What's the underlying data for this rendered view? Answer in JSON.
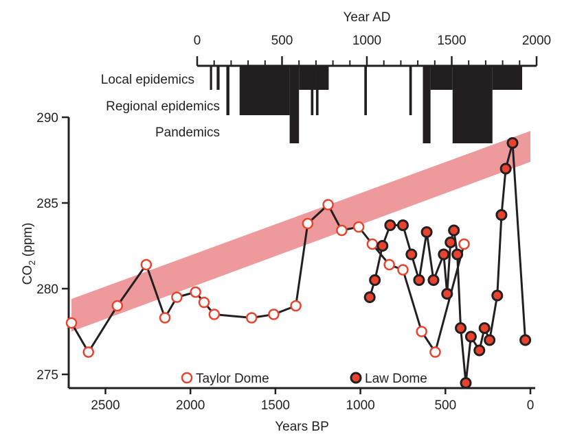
{
  "chart_data": {
    "type": "scatter",
    "ylabel_main": "CO",
    "ylabel_sub": "2",
    "ylabel_unit": " (ppm)",
    "xlabel_bottom": "Years BP",
    "xlabel_top": "Year AD",
    "xlim_bp": [
      2700,
      0
    ],
    "ylim": [
      274.2,
      290
    ],
    "xlim_ad": [
      0,
      2000
    ],
    "y_ticks": [
      275,
      280,
      285,
      290
    ],
    "y_tick_labels": [
      "275",
      "280",
      "285",
      "290"
    ],
    "x_ticks_bp": [
      2500,
      2000,
      1500,
      1000,
      500,
      0
    ],
    "x_tick_labels_bp": [
      "2500",
      "2000",
      "1500",
      "1000",
      "500",
      "0"
    ],
    "x_ticks_ad": [
      0,
      500,
      1000,
      1500,
      2000
    ],
    "x_tick_labels_ad": [
      "0",
      "500",
      "1000",
      "1500",
      "2000"
    ],
    "x_minor_ticks_ad": [
      100,
      200,
      300,
      400,
      600,
      700,
      800,
      900,
      1100,
      1200,
      1300,
      1400,
      1600,
      1700,
      1800,
      1900
    ],
    "trend_band": {
      "color": "#ee9a9c",
      "start": {
        "bp": 2700,
        "low": 277.5,
        "high": 279.4
      },
      "end": {
        "bp": 0,
        "low": 287.4,
        "high": 289.2
      }
    },
    "series": [
      {
        "name": "Taylor Dome",
        "marker": "open",
        "edge_color": "#e8432f",
        "fill_color": "#ffffff",
        "line_color": "#231f20",
        "x": [
          2700,
          2600,
          2430,
          2260,
          2150,
          2080,
          1970,
          1920,
          1860,
          1640,
          1510,
          1380,
          1310,
          1190,
          1110,
          1010,
          930,
          830,
          750,
          640,
          560,
          390
        ],
        "y": [
          278.0,
          276.3,
          279.0,
          281.4,
          278.3,
          279.5,
          279.8,
          279.2,
          278.5,
          278.3,
          278.5,
          279.0,
          283.8,
          284.9,
          283.4,
          283.6,
          282.6,
          281.4,
          281.1,
          277.5,
          276.3,
          282.6
        ]
      },
      {
        "name": "Law Dome",
        "marker": "filled",
        "edge_color": "#231f20",
        "fill_color": "#e8432f",
        "line_color": "#231f20",
        "x": [
          945,
          915,
          870,
          825,
          750,
          700,
          655,
          610,
          570,
          510,
          490,
          470,
          450,
          430,
          410,
          380,
          350,
          300,
          270,
          240,
          195,
          170,
          145,
          105,
          30
        ],
        "y": [
          279.5,
          280.5,
          282.5,
          283.7,
          283.7,
          282.0,
          280.5,
          283.3,
          280.5,
          282.0,
          279.7,
          282.7,
          283.4,
          282.0,
          277.7,
          274.5,
          277.2,
          276.4,
          277.7,
          277.0,
          279.6,
          284.3,
          287.0,
          288.5,
          277.0
        ]
      }
    ],
    "legend": [
      {
        "label": "Taylor Dome",
        "marker": "open"
      },
      {
        "label": "Law Dome",
        "marker": "filled"
      }
    ],
    "epidemic_bands": {
      "fill_color": "#231f20",
      "rows": [
        "Local epidemics",
        "Regional epidemics",
        "Pandemics"
      ],
      "segments": [
        {
          "ad_start": 75,
          "ad_end": 88,
          "level": 1
        },
        {
          "ad_start": 115,
          "ad_end": 132,
          "level": 1
        },
        {
          "ad_start": 172,
          "ad_end": 190,
          "level": 2
        },
        {
          "ad_start": 250,
          "ad_end": 545,
          "level": 2
        },
        {
          "ad_start": 545,
          "ad_end": 600,
          "level": 3
        },
        {
          "ad_start": 600,
          "ad_end": 775,
          "level": 1
        },
        {
          "ad_start": 670,
          "ad_end": 685,
          "level": 2
        },
        {
          "ad_start": 700,
          "ad_end": 715,
          "level": 2
        },
        {
          "ad_start": 985,
          "ad_end": 1000,
          "level": 2
        },
        {
          "ad_start": 1250,
          "ad_end": 1265,
          "level": 2
        },
        {
          "ad_start": 1330,
          "ad_end": 1375,
          "level": 3
        },
        {
          "ad_start": 1375,
          "ad_end": 1505,
          "level": 1
        },
        {
          "ad_start": 1505,
          "ad_end": 1740,
          "level": 3
        },
        {
          "ad_start": 1740,
          "ad_end": 1915,
          "level": 1
        }
      ]
    }
  }
}
